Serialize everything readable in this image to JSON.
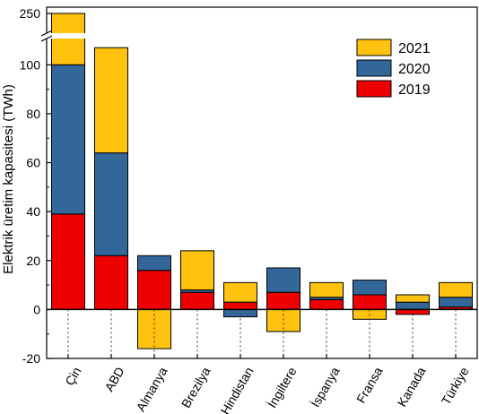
{
  "chart_data": {
    "type": "bar",
    "stacked": true,
    "ylabel": "Elektrik üretim kapasitesi (TWh)",
    "ylim": [
      -20,
      110
    ],
    "axis_break": {
      "from": 110,
      "to": 250,
      "top_label": "250"
    },
    "yticks": [
      -20,
      0,
      20,
      40,
      60,
      80,
      100
    ],
    "categories": [
      "Çin",
      "ABD",
      "Almanya",
      "Brezilya",
      "Hindistan",
      "İngiltere",
      "İspanya",
      "Fransa",
      "Kanada",
      "Türkiye"
    ],
    "series": [
      {
        "name": "2019",
        "color": "#ee0000",
        "values": [
          39,
          22,
          16,
          7,
          3,
          7,
          4,
          6,
          -2,
          1
        ]
      },
      {
        "name": "2020",
        "color": "#336699",
        "values": [
          61,
          42,
          6,
          1,
          -3,
          10,
          1,
          6,
          3,
          4
        ]
      },
      {
        "name": "2021",
        "color": "#ffc20e",
        "values": [
          150,
          43,
          -16,
          16,
          8,
          -9,
          6,
          -4,
          3,
          6
        ]
      }
    ],
    "legend": {
      "position": "top-right",
      "order": [
        "2021",
        "2020",
        "2019"
      ]
    },
    "grid": false
  }
}
